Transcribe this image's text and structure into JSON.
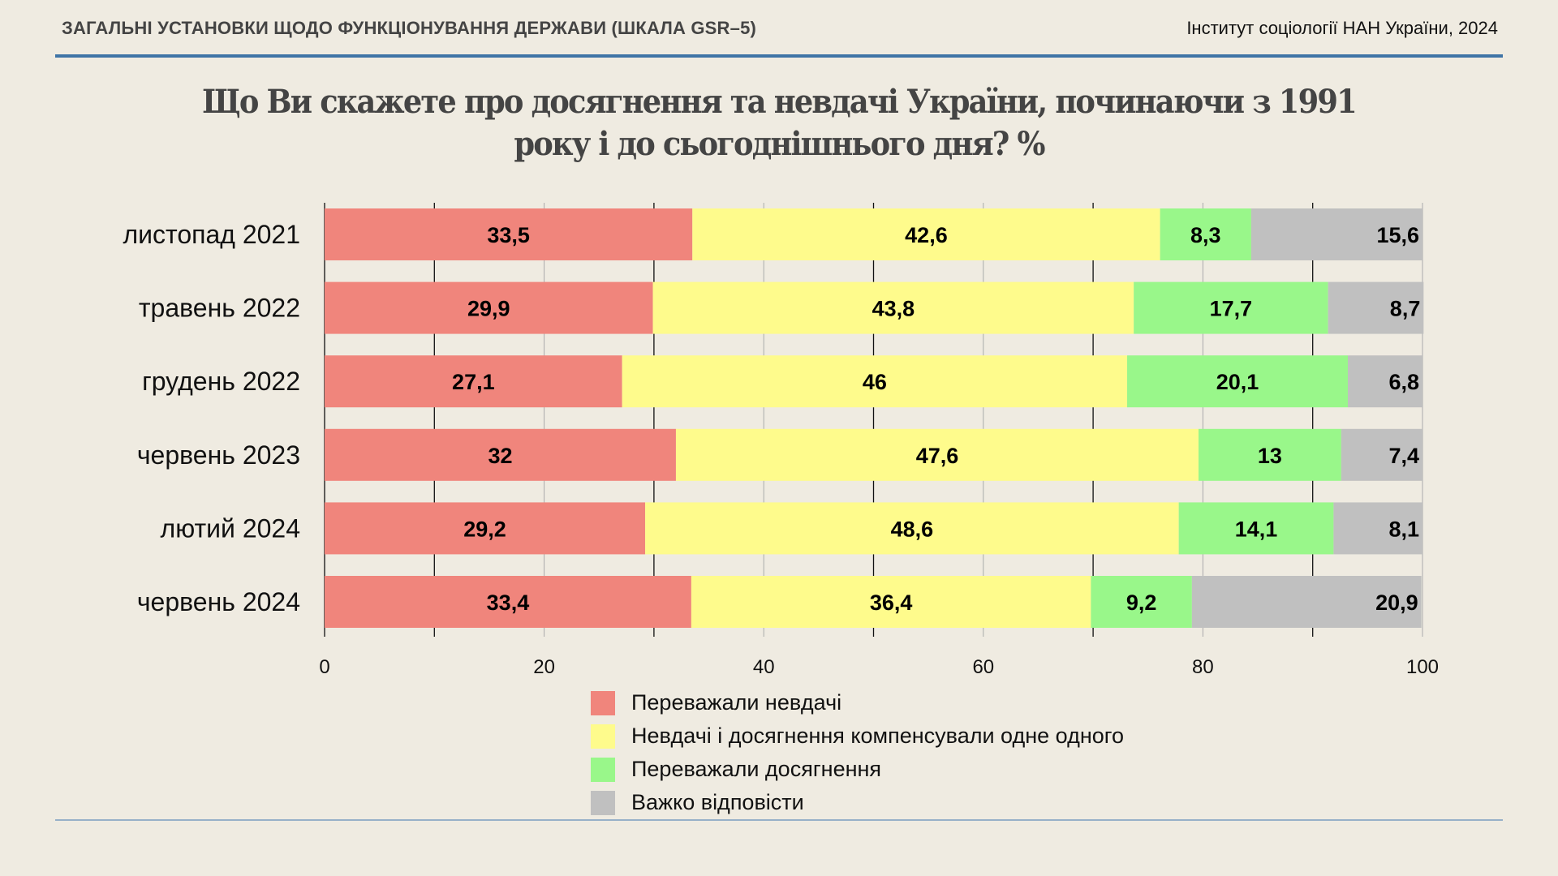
{
  "header": {
    "section": "ЗАГАЛЬНІ УСТАНОВКИ ЩОДО ФУНКЦІОНУВАННЯ ДЕРЖАВИ (ШКАЛА GSR–5)",
    "source": "Інститут соціології НАН України, 2024"
  },
  "title_line1": "Що Ви скажете про досягнення та невдачі України, починаючи з 1991",
  "title_line2": "року і до сьогоднішнього дня? %",
  "chart_data": {
    "type": "bar",
    "orientation": "horizontal",
    "stacked": true,
    "title": "Що Ви скажете про досягнення та невдачі України, починаючи з 1991 року і до сьогоднішнього дня? %",
    "categories": [
      "листопад 2021",
      "травень 2022",
      "грудень 2022",
      "червень 2023",
      "лютий 2024",
      "червень 2024"
    ],
    "series": [
      {
        "name": "Переважали невдачі",
        "color": "#f0857c",
        "values": [
          33.5,
          29.9,
          27.1,
          32,
          29.2,
          33.4
        ],
        "labels": [
          "33,5",
          "29,9",
          "27,1",
          "32",
          "29,2",
          "33,4"
        ]
      },
      {
        "name": "Невдачі і досягнення компенсували одне одного",
        "color": "#fefb8c",
        "values": [
          42.6,
          43.8,
          46,
          47.6,
          48.6,
          36.4
        ],
        "labels": [
          "42,6",
          "43,8",
          "46",
          "47,6",
          "48,6",
          "36,4"
        ]
      },
      {
        "name": "Переважали досягнення",
        "color": "#99f78a",
        "values": [
          8.3,
          17.7,
          20.1,
          13,
          14.1,
          9.2
        ],
        "labels": [
          "8,3",
          "17,7",
          "20,1",
          "13",
          "14,1",
          "9,2"
        ]
      },
      {
        "name": "Важко відповісти",
        "color": "#c0c0c0",
        "values": [
          15.6,
          8.7,
          6.8,
          7.4,
          8.1,
          20.9
        ],
        "labels": [
          "15,6",
          "8,7",
          "6,8",
          "7,4",
          "8,1",
          "20,9"
        ]
      }
    ],
    "xlim": [
      0,
      100
    ],
    "xticks": [
      0,
      20,
      40,
      60,
      80,
      100
    ],
    "xtick_labels": [
      "0",
      "20",
      "40",
      "60",
      "80",
      "100"
    ],
    "grid": true,
    "legend_position": "bottom-center",
    "xlabel": "",
    "ylabel": ""
  }
}
